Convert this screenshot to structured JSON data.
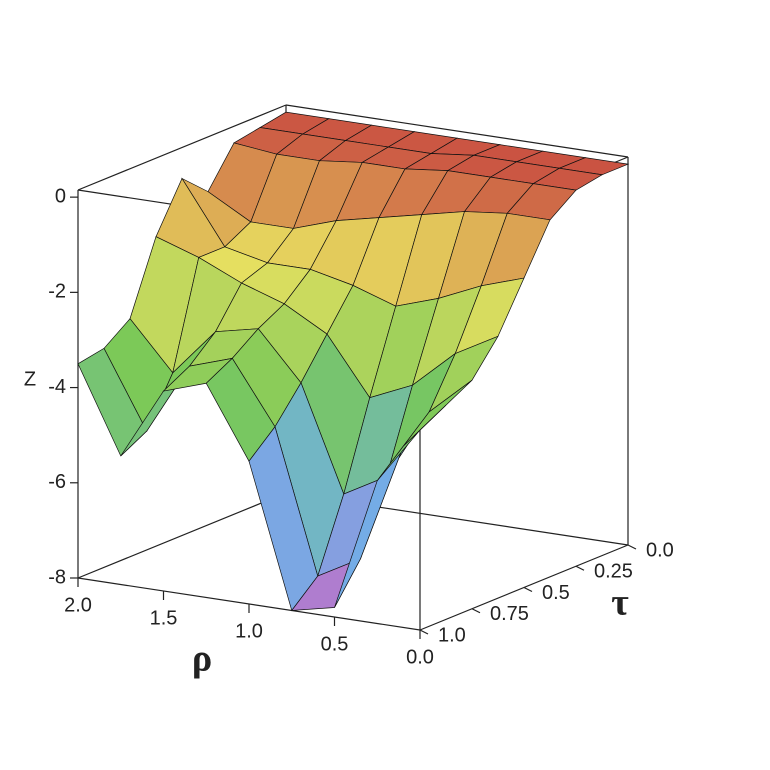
{
  "chart_data": {
    "type": "surface",
    "xlabel": "ρ",
    "ylabel": "τ",
    "zlabel": "Z",
    "rho": [
      0,
      0.25,
      0.5,
      0.75,
      1.0,
      1.25,
      1.5,
      1.75,
      2.0
    ],
    "tau": [
      0,
      0.125,
      0.25,
      0.375,
      0.5,
      0.625,
      0.75,
      0.875,
      1.0
    ],
    "z": [
      [
        0,
        0,
        0,
        0,
        0,
        0,
        0,
        0,
        0
      ],
      [
        0,
        0,
        0,
        0,
        -0.1,
        -0.1,
        -0.1,
        -0.1,
        -0.1
      ],
      [
        -0.1,
        -0.1,
        -0.1,
        -0.1,
        -0.2,
        -0.2,
        -0.3,
        -0.3,
        -0.2
      ],
      [
        -0.5,
        -0.5,
        -0.6,
        -0.8,
        -1.0,
        -1.2,
        -1.5,
        -1.5,
        -1.0
      ],
      [
        -1.5,
        -1.8,
        -2.2,
        -2.5,
        -2.2,
        -2.0,
        -2.0,
        -1.8,
        -0.5
      ],
      [
        -2.5,
        -3.0,
        -3.8,
        -4.2,
        -3.0,
        -2.5,
        -2.2,
        -1.8,
        -1.5
      ],
      [
        -3.2,
        -4.0,
        -5.5,
        -6.0,
        -3.8,
        -2.8,
        -3.0,
        -4.0,
        -3.0
      ],
      [
        -3.5,
        -4.5,
        -7.0,
        -7.5,
        -4.5,
        -3.2,
        -3.5,
        -5.0,
        -3.4
      ],
      [
        -3.8,
        -5.0,
        -7.8,
        -8.0,
        -5.0,
        -3.5,
        -3.8,
        -5.3,
        -3.5
      ]
    ],
    "colormap": [
      "#c070c8",
      "#70b0e8",
      "#78c858",
      "#e8e060",
      "#c84840"
    ],
    "xlim": [
      0,
      2
    ],
    "ylim": [
      0,
      1
    ],
    "zlim": [
      -8,
      0.15
    ],
    "xticks": [
      {
        "value": 2,
        "label": "2.0"
      },
      1.5,
      {
        "value": 1,
        "label": "1.0"
      },
      0.5,
      {
        "value": 0,
        "label": "0.0"
      }
    ],
    "yticks": [
      {
        "value": 0,
        "label": "0.0"
      },
      0.25,
      0.5,
      0.75,
      {
        "value": 1,
        "label": "1.0"
      }
    ],
    "zticks": [
      0,
      -2,
      -4,
      -6,
      -8
    ]
  }
}
